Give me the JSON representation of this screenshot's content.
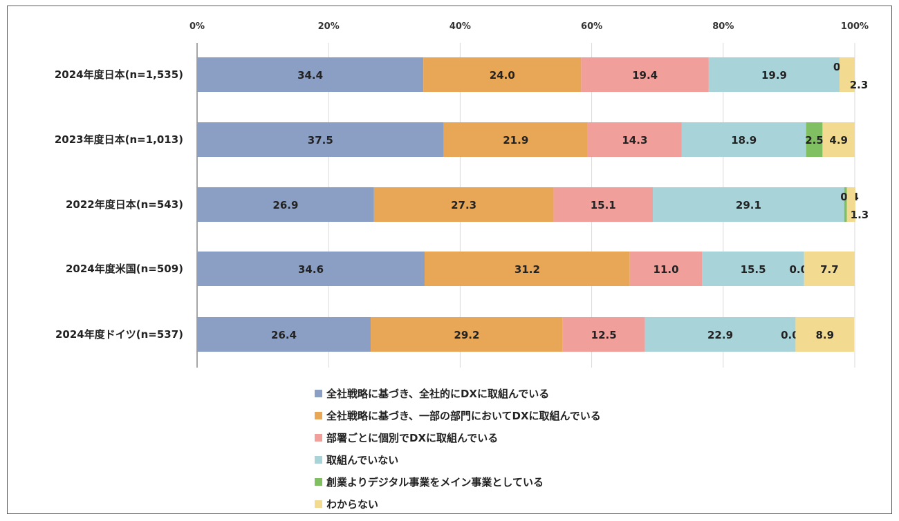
{
  "chart_data": {
    "type": "bar",
    "orientation": "horizontal-stacked-100",
    "title": "",
    "xlabel": "",
    "ylabel": "",
    "xlim": [
      0,
      100
    ],
    "x_ticks": [
      "0%",
      "20%",
      "40%",
      "60%",
      "80%",
      "100%"
    ],
    "grid": true,
    "legend_position": "bottom",
    "categories": [
      "2024年度日本(n=1,535)",
      "2023年度日本(n=1,013)",
      "2022年度日本(n=543)",
      "2024年度米国(n=509)",
      "2024年度ドイツ(n=537)"
    ],
    "series": [
      {
        "name": "全社戦略に基づき、全社的にDXに取組んでいる",
        "color": "#8a9fc3",
        "values": [
          34.4,
          37.5,
          26.9,
          34.6,
          26.4
        ]
      },
      {
        "name": "全社戦略に基づき、一部の部門においてDXに取組んでいる",
        "color": "#e8a657",
        "values": [
          24.0,
          21.9,
          27.3,
          31.2,
          29.2
        ]
      },
      {
        "name": "部署ごとに個別でDXに取組んでいる",
        "color": "#f09f9b",
        "values": [
          19.4,
          14.3,
          15.1,
          11.0,
          12.5
        ]
      },
      {
        "name": "取組んでいない",
        "color": "#a8d3d9",
        "values": [
          19.9,
          18.9,
          29.1,
          15.5,
          22.9
        ]
      },
      {
        "name": "創業よりデジタル事業をメイン事業としている",
        "color": "#80bf62",
        "values": [
          0.0,
          2.5,
          0.4,
          0.0,
          0.0
        ]
      },
      {
        "name": "わからない",
        "color": "#f2da91",
        "values": [
          2.3,
          4.9,
          1.3,
          7.7,
          8.9
        ]
      }
    ]
  }
}
